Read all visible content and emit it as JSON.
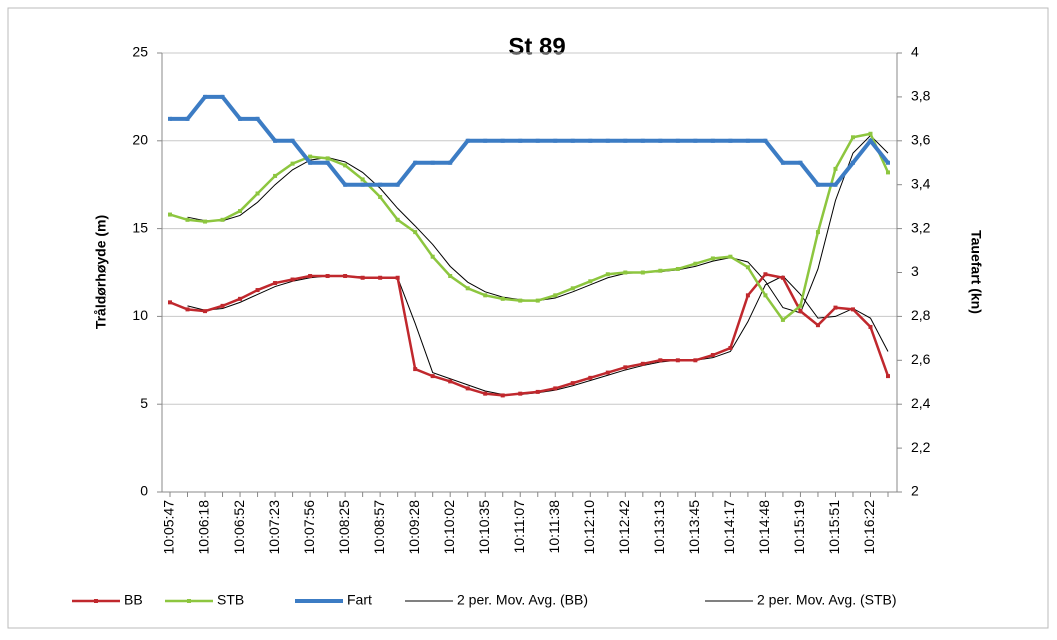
{
  "chart_data": {
    "type": "line",
    "title": "St 89",
    "y_label": "Tråldørhøyde (m)",
    "y2_label": "Tauefart (kn)",
    "categories": [
      "10:05:47",
      null,
      "10:06:18",
      null,
      "10:06:52",
      null,
      "10:07:23",
      null,
      "10:07:56",
      null,
      "10:08:25",
      null,
      "10:08:57",
      null,
      "10:09:28",
      null,
      "10:10:02",
      null,
      "10:10:35",
      null,
      "10:11:07",
      null,
      "10:11:38",
      null,
      "10:12:10",
      null,
      "10:12:42",
      null,
      "10:13:13",
      null,
      "10:13:45",
      null,
      "10:14:17",
      null,
      "10:14:48",
      null,
      "10:15:19",
      null,
      "10:15:51",
      null,
      "10:16:22",
      null
    ],
    "ylim": [
      0,
      25
    ],
    "yticks": [
      0,
      5,
      10,
      15,
      20,
      25
    ],
    "y2lim": [
      2,
      4
    ],
    "y2ticks": [
      2,
      {
        "value": 2.2,
        "label": "2,2"
      },
      {
        "value": 2.4,
        "label": "2,4"
      },
      {
        "value": 2.6,
        "label": "2,6"
      },
      {
        "value": 2.8,
        "label": "2,8"
      },
      3,
      {
        "value": 3.2,
        "label": "3,2"
      },
      {
        "value": 3.4,
        "label": "3,4"
      },
      {
        "value": 3.6,
        "label": "3,6"
      },
      {
        "value": 3.8,
        "label": "3,8"
      },
      4
    ],
    "grid": true,
    "legend": "bottom",
    "series": [
      {
        "name": "BB",
        "color": "#c0282d",
        "values": [
          10.8,
          10.4,
          10.3,
          10.6,
          11.0,
          11.5,
          11.9,
          12.1,
          12.3,
          12.3,
          12.3,
          12.2,
          12.2,
          12.2,
          7.0,
          6.6,
          6.3,
          5.9,
          5.6,
          5.5,
          5.6,
          5.7,
          5.9,
          6.2,
          6.5,
          6.8,
          7.1,
          7.3,
          7.5,
          7.5,
          7.5,
          7.8,
          8.2,
          11.2,
          12.4,
          12.2,
          10.3,
          9.5,
          10.5,
          10.4,
          9.4,
          6.6
        ]
      },
      {
        "name": "STB",
        "color": "#8dc63f",
        "values": [
          15.8,
          15.5,
          15.4,
          15.5,
          16.0,
          17.0,
          18.0,
          18.7,
          19.1,
          19.0,
          18.6,
          17.8,
          16.8,
          15.5,
          14.8,
          13.4,
          12.3,
          11.6,
          11.2,
          11.0,
          10.9,
          10.9,
          11.2,
          11.6,
          12.0,
          12.4,
          12.5,
          12.5,
          12.6,
          12.7,
          13.0,
          13.3,
          13.4,
          12.8,
          11.2,
          9.8,
          10.6,
          14.8,
          18.4,
          20.2,
          20.4,
          18.2
        ]
      },
      {
        "name": "Fart",
        "color": "#3c7cc4",
        "axis": "y2",
        "values": [
          3.7,
          3.7,
          3.8,
          3.8,
          3.7,
          3.7,
          3.6,
          3.6,
          3.5,
          3.5,
          3.4,
          3.4,
          3.4,
          3.4,
          3.5,
          3.5,
          3.5,
          3.6,
          3.6,
          3.6,
          3.6,
          3.6,
          3.6,
          3.6,
          3.6,
          3.6,
          3.6,
          3.6,
          3.6,
          3.6,
          3.6,
          3.6,
          3.6,
          3.6,
          3.6,
          3.5,
          3.5,
          3.4,
          3.4,
          3.5,
          3.6,
          3.5
        ]
      },
      {
        "name": "2 per. Mov. Avg. (BB)",
        "color": "#000000",
        "values": [
          null,
          10.6,
          10.35,
          10.45,
          10.8,
          11.25,
          11.7,
          12.0,
          12.2,
          12.3,
          12.3,
          12.25,
          12.2,
          12.2,
          9.6,
          6.8,
          6.45,
          6.1,
          5.75,
          5.55,
          5.55,
          5.65,
          5.8,
          6.05,
          6.35,
          6.65,
          6.95,
          7.2,
          7.4,
          7.5,
          7.5,
          7.65,
          8.0,
          9.7,
          11.8,
          12.3,
          11.25,
          9.9,
          10.0,
          10.45,
          9.9,
          8.0
        ]
      },
      {
        "name": "2 per. Mov. Avg. (STB)",
        "color": "#000000",
        "values": [
          null,
          15.65,
          15.45,
          15.45,
          15.75,
          16.5,
          17.5,
          18.35,
          18.9,
          19.05,
          18.8,
          18.2,
          17.3,
          16.15,
          15.15,
          14.1,
          12.85,
          11.95,
          11.4,
          11.1,
          10.95,
          10.9,
          11.05,
          11.4,
          11.8,
          12.2,
          12.45,
          12.5,
          12.55,
          12.65,
          12.85,
          13.15,
          13.35,
          13.1,
          12.0,
          10.5,
          10.2,
          12.7,
          16.6,
          19.3,
          20.3,
          19.3
        ]
      }
    ]
  }
}
